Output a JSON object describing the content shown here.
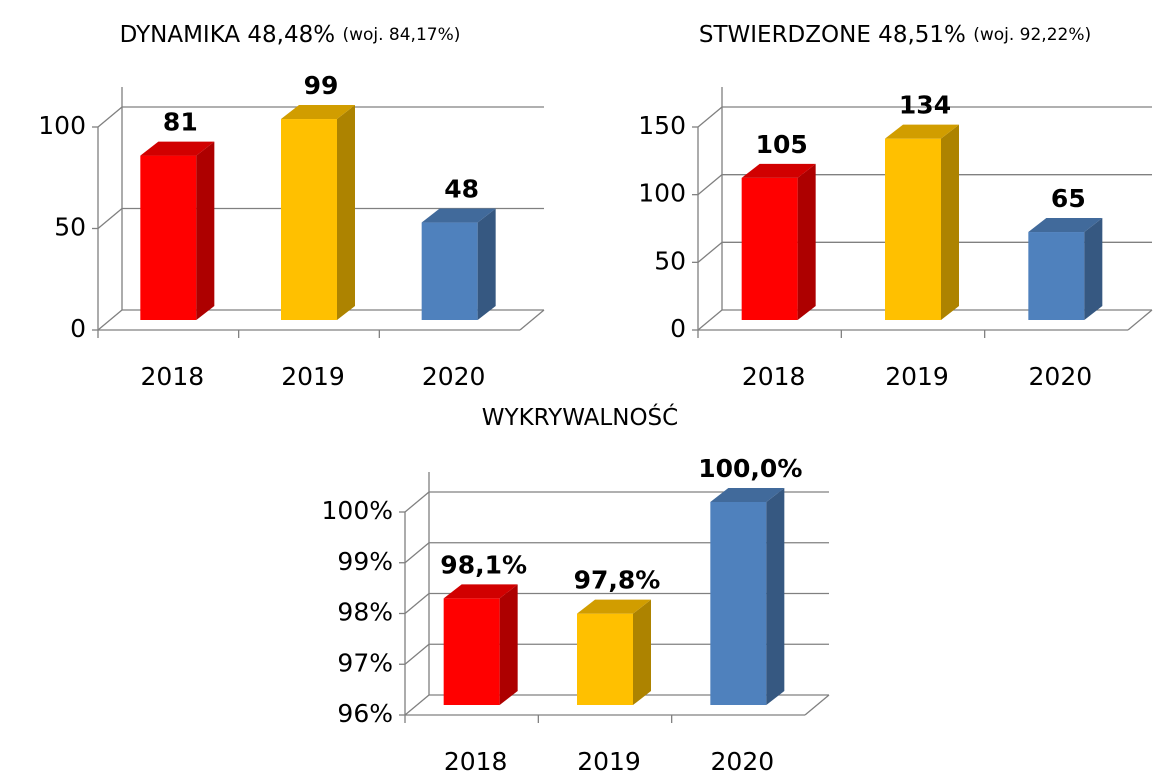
{
  "chart_data": [
    {
      "type": "bar3d",
      "title": "DYNAMIKA 48,48%",
      "title_note": "(woj. 84,17%)",
      "categories": [
        "2018",
        "2019",
        "2020"
      ],
      "values": [
        81,
        99,
        48
      ],
      "colors": [
        "#ff0000",
        "#ffc000",
        "#4f81bd"
      ],
      "ylim": [
        0,
        100
      ],
      "yticks": [
        0,
        50,
        100
      ],
      "grid": true
    },
    {
      "type": "bar3d",
      "title": "STWIERDZONE 48,51%",
      "title_note": "(woj. 92,22%)",
      "categories": [
        "2018",
        "2019",
        "2020"
      ],
      "values": [
        105,
        134,
        65
      ],
      "colors": [
        "#ff0000",
        "#ffc000",
        "#4f81bd"
      ],
      "ylim": [
        0,
        150
      ],
      "yticks": [
        0,
        50,
        100,
        150
      ],
      "grid": true
    },
    {
      "type": "bar3d",
      "title": "WYKRYWALNOŚĆ",
      "categories": [
        "2018",
        "2019",
        "2020"
      ],
      "values": [
        98.1,
        97.8,
        100.0
      ],
      "value_labels": [
        "98,1%",
        "97,8%",
        "100,0%"
      ],
      "colors": [
        "#ff0000",
        "#ffc000",
        "#4f81bd"
      ],
      "ylim": [
        96,
        100
      ],
      "yticks": [
        {
          "value": 96,
          "label": "96%"
        },
        {
          "value": 97,
          "label": "97%"
        },
        {
          "value": 98,
          "label": "98%"
        },
        {
          "value": 99,
          "label": "99%"
        },
        {
          "value": 100,
          "label": "100%"
        }
      ],
      "grid": true
    }
  ]
}
